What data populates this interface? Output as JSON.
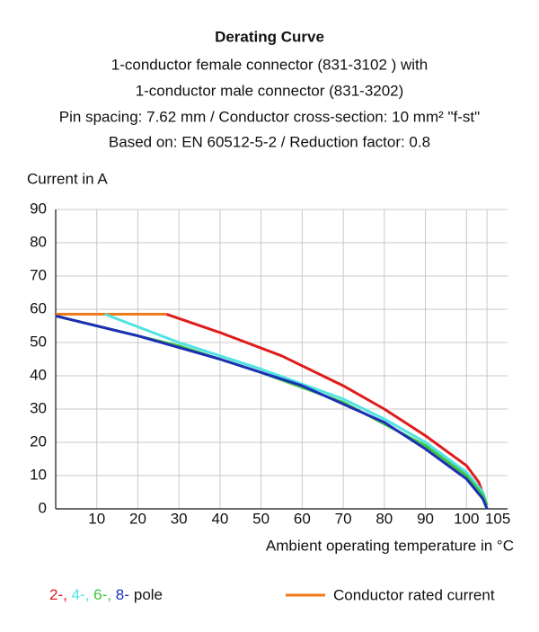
{
  "chart_data": {
    "type": "line",
    "title": "Derating Curve",
    "subtitle": [
      "1-conductor female connector (831-3102 ) with",
      "1-conductor male connector (831-3202)",
      "Pin spacing: 7.62 mm / Conductor cross-section: 10 mm² \"f-st\"",
      "Based on: EN 60512-5-2 / Reduction factor: 0.8"
    ],
    "y_label": "Current in A",
    "x_label": "Ambient operating temperature in °C",
    "xlim": [
      0,
      110
    ],
    "xticks": [
      10,
      20,
      30,
      40,
      50,
      60,
      70,
      80,
      90,
      100,
      105
    ],
    "ylim": [
      0,
      90
    ],
    "yticks": [
      0,
      10,
      20,
      30,
      40,
      50,
      60,
      70,
      80,
      90
    ],
    "grid": true,
    "series": [
      {
        "name": "Conductor rated current",
        "color": "#f07a1a",
        "x": [
          0,
          27
        ],
        "values": [
          58.5,
          58.5
        ]
      },
      {
        "name": "2-,",
        "color": "#e01b1b",
        "x": [
          27,
          40,
          55,
          70,
          80,
          90,
          100,
          103,
          105
        ],
        "values": [
          58.5,
          53,
          46,
          37,
          30,
          22,
          13,
          8,
          1
        ]
      },
      {
        "name": "4-,",
        "color": "#4fe3e3",
        "x": [
          12,
          30,
          50,
          70,
          80,
          90,
          100,
          104,
          105
        ],
        "values": [
          58.5,
          50,
          42,
          33,
          27,
          20,
          11,
          5,
          1
        ]
      },
      {
        "name": "6-,",
        "color": "#3ec43e",
        "x": [
          0,
          10,
          30,
          50,
          70,
          90,
          100,
          104,
          105
        ],
        "values": [
          58,
          55,
          49,
          41,
          32,
          19,
          10,
          4,
          1
        ]
      },
      {
        "name": "8-",
        "color": "#1c2fb5",
        "x": [
          0,
          20,
          40,
          60,
          80,
          90,
          100,
          104,
          105
        ],
        "values": [
          58,
          52,
          45,
          37,
          26,
          18,
          9,
          3,
          0
        ]
      }
    ],
    "legend_suffix": "pole"
  }
}
